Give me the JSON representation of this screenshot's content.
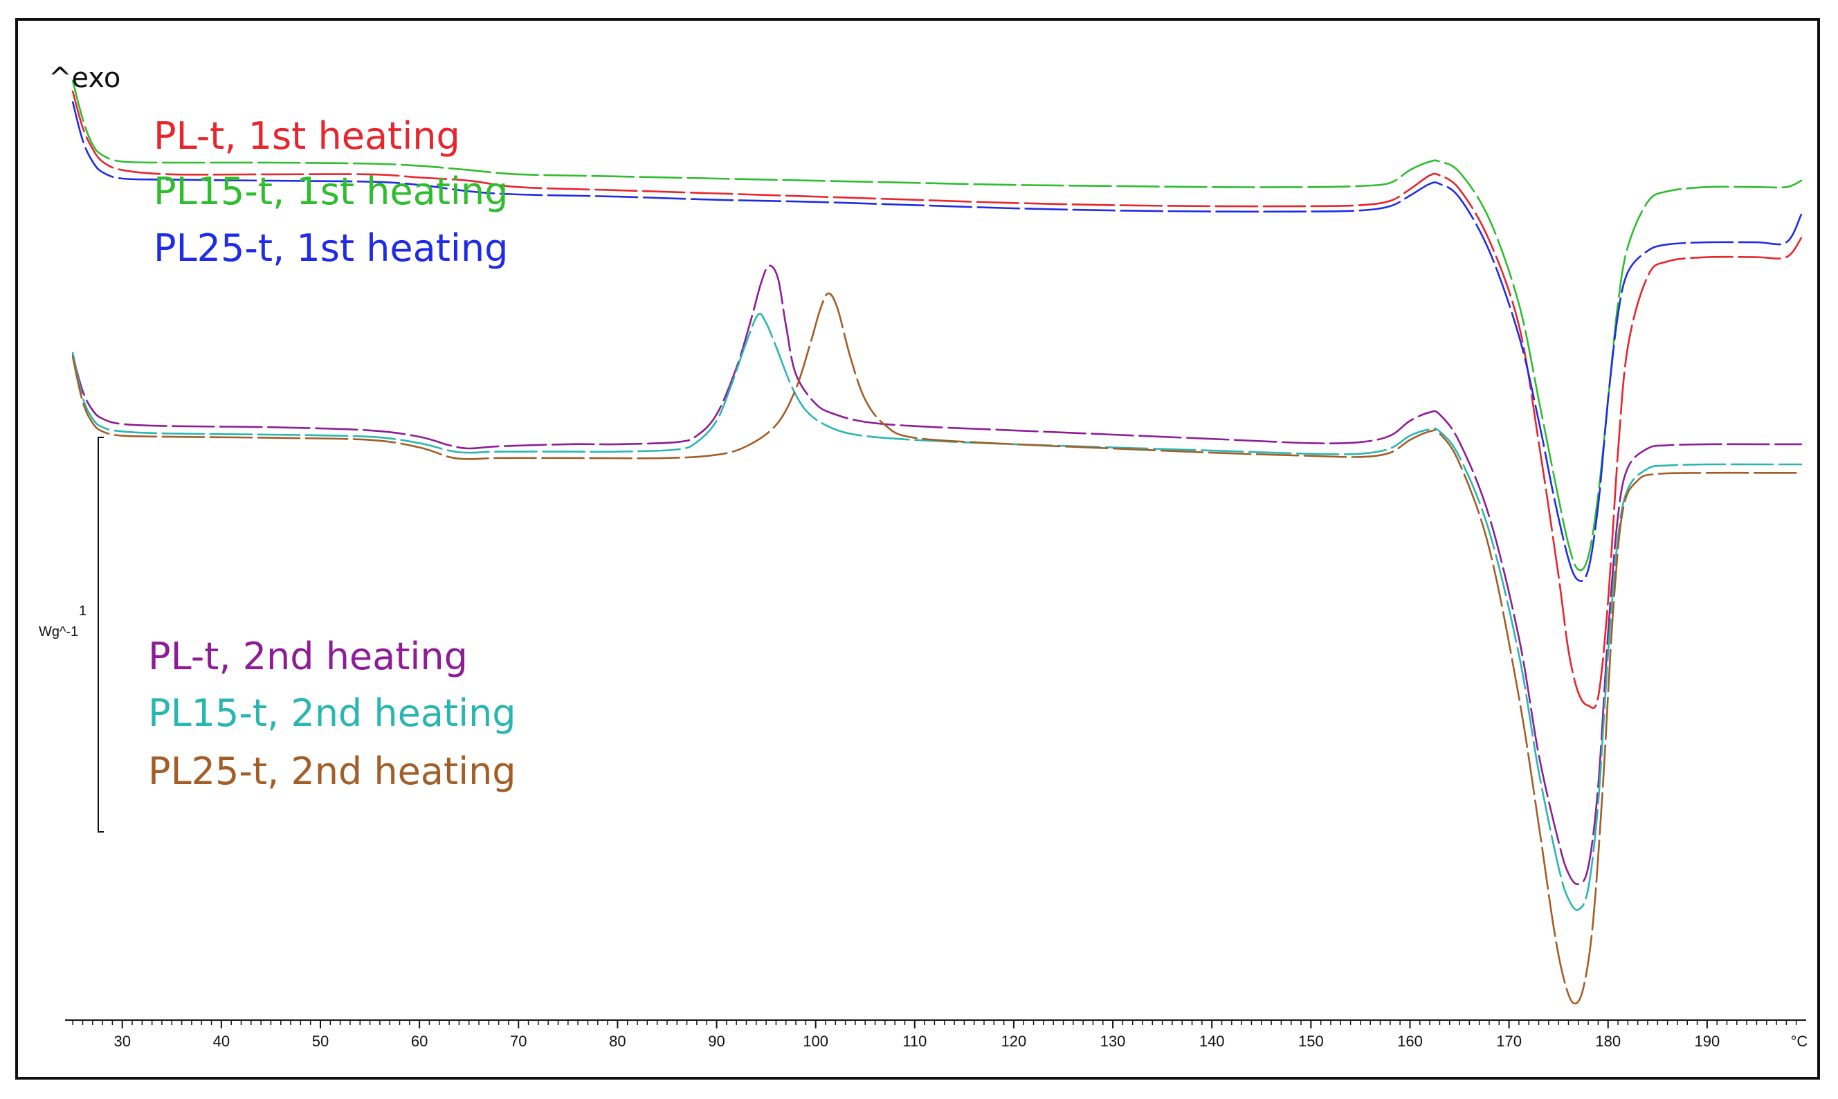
{
  "exo_label": "^exo",
  "scale_bar": {
    "value": "1",
    "unit": "Wg^-1"
  },
  "chart_data": {
    "type": "line",
    "title": "",
    "xlabel": "°C",
    "ylabel": "Wg^-1",
    "xlim": [
      24.5,
      200
    ],
    "ylim": [
      -3.02,
      1.65
    ],
    "x_ticks": [
      30,
      40,
      50,
      60,
      70,
      80,
      90,
      100,
      110,
      120,
      130,
      140,
      150,
      160,
      170,
      180,
      190
    ],
    "x_unit_label": "°C",
    "series": [
      {
        "name": "PL-t, 1st heating",
        "color": "#e8242c",
        "dashed": true,
        "points": [
          [
            25,
            1.35
          ],
          [
            26,
            1.18
          ],
          [
            27,
            1.08
          ],
          [
            28,
            1.02
          ],
          [
            30,
            0.98
          ],
          [
            35,
            0.96
          ],
          [
            45,
            0.96
          ],
          [
            55,
            0.96
          ],
          [
            60,
            0.945
          ],
          [
            65,
            0.93
          ],
          [
            70,
            0.9
          ],
          [
            80,
            0.885
          ],
          [
            90,
            0.87
          ],
          [
            100,
            0.855
          ],
          [
            110,
            0.84
          ],
          [
            120,
            0.825
          ],
          [
            130,
            0.815
          ],
          [
            140,
            0.81
          ],
          [
            150,
            0.81
          ],
          [
            155,
            0.815
          ],
          [
            158,
            0.835
          ],
          [
            160,
            0.89
          ],
          [
            162,
            0.955
          ],
          [
            163,
            0.955
          ],
          [
            165,
            0.89
          ],
          [
            168,
            0.65
          ],
          [
            171,
            0.25
          ],
          [
            173,
            -0.3
          ],
          [
            175,
            -0.93
          ],
          [
            176,
            -1.28
          ],
          [
            177,
            -1.48
          ],
          [
            178,
            -1.54
          ],
          [
            179,
            -1.5
          ],
          [
            180,
            -1.05
          ],
          [
            181,
            -0.35
          ],
          [
            182,
            0.15
          ],
          [
            184,
            0.48
          ],
          [
            186,
            0.55
          ],
          [
            190,
            0.57
          ],
          [
            195,
            0.57
          ],
          [
            198,
            0.57
          ],
          [
            199.5,
            0.66
          ]
        ]
      },
      {
        "name": "PL15-t, 1st heating",
        "color": "#2dbd2d",
        "dashed": true,
        "points": [
          [
            25,
            1.4
          ],
          [
            26,
            1.22
          ],
          [
            27,
            1.1
          ],
          [
            28,
            1.05
          ],
          [
            30,
            1.02
          ],
          [
            35,
            1.015
          ],
          [
            45,
            1.015
          ],
          [
            55,
            1.01
          ],
          [
            60,
            1.0
          ],
          [
            65,
            0.98
          ],
          [
            70,
            0.96
          ],
          [
            80,
            0.95
          ],
          [
            90,
            0.94
          ],
          [
            100,
            0.93
          ],
          [
            110,
            0.92
          ],
          [
            120,
            0.91
          ],
          [
            130,
            0.905
          ],
          [
            140,
            0.9
          ],
          [
            150,
            0.9
          ],
          [
            155,
            0.905
          ],
          [
            158,
            0.92
          ],
          [
            160,
            0.98
          ],
          [
            162,
            1.02
          ],
          [
            163,
            1.02
          ],
          [
            165,
            0.97
          ],
          [
            168,
            0.75
          ],
          [
            171,
            0.35
          ],
          [
            173,
            -0.1
          ],
          [
            174.5,
            -0.45
          ],
          [
            176,
            -0.78
          ],
          [
            177,
            -0.9
          ],
          [
            178,
            -0.84
          ],
          [
            179,
            -0.55
          ],
          [
            180,
            -0.1
          ],
          [
            181,
            0.35
          ],
          [
            182,
            0.62
          ],
          [
            184,
            0.83
          ],
          [
            186,
            0.88
          ],
          [
            190,
            0.9
          ],
          [
            195,
            0.9
          ],
          [
            198,
            0.9
          ],
          [
            199.5,
            0.93
          ]
        ]
      },
      {
        "name": "PL25-t, 1st heating",
        "color": "#1f2be8",
        "dashed": true,
        "points": [
          [
            25,
            1.3
          ],
          [
            26,
            1.12
          ],
          [
            27,
            1.02
          ],
          [
            28,
            0.97
          ],
          [
            30,
            0.94
          ],
          [
            35,
            0.935
          ],
          [
            45,
            0.93
          ],
          [
            55,
            0.925
          ],
          [
            60,
            0.91
          ],
          [
            65,
            0.88
          ],
          [
            70,
            0.865
          ],
          [
            80,
            0.855
          ],
          [
            90,
            0.84
          ],
          [
            100,
            0.83
          ],
          [
            110,
            0.815
          ],
          [
            120,
            0.8
          ],
          [
            130,
            0.79
          ],
          [
            140,
            0.785
          ],
          [
            150,
            0.785
          ],
          [
            155,
            0.79
          ],
          [
            158,
            0.81
          ],
          [
            160,
            0.86
          ],
          [
            162,
            0.915
          ],
          [
            163,
            0.915
          ],
          [
            165,
            0.85
          ],
          [
            168,
            0.6
          ],
          [
            171,
            0.2
          ],
          [
            173,
            -0.2
          ],
          [
            174.5,
            -0.55
          ],
          [
            176,
            -0.85
          ],
          [
            177,
            -0.95
          ],
          [
            178,
            -0.9
          ],
          [
            179,
            -0.6
          ],
          [
            180,
            -0.1
          ],
          [
            181,
            0.3
          ],
          [
            182,
            0.5
          ],
          [
            184,
            0.6
          ],
          [
            186,
            0.63
          ],
          [
            190,
            0.64
          ],
          [
            195,
            0.64
          ],
          [
            198,
            0.64
          ],
          [
            199.5,
            0.77
          ]
        ]
      },
      {
        "name": "PL-t, 2nd heating",
        "color": "#8e1c96",
        "dashed": true,
        "points": [
          [
            25,
            0.11
          ],
          [
            26,
            -0.06
          ],
          [
            27,
            -0.15
          ],
          [
            28,
            -0.19
          ],
          [
            30,
            -0.215
          ],
          [
            35,
            -0.225
          ],
          [
            45,
            -0.23
          ],
          [
            55,
            -0.245
          ],
          [
            60,
            -0.275
          ],
          [
            63,
            -0.315
          ],
          [
            65,
            -0.33
          ],
          [
            68,
            -0.32
          ],
          [
            75,
            -0.31
          ],
          [
            80,
            -0.31
          ],
          [
            86,
            -0.3
          ],
          [
            88,
            -0.27
          ],
          [
            90,
            -0.17
          ],
          [
            92,
            0.05
          ],
          [
            93.5,
            0.28
          ],
          [
            94.5,
            0.45
          ],
          [
            95.3,
            0.53
          ],
          [
            96.2,
            0.47
          ],
          [
            97,
            0.25
          ],
          [
            98,
            0.02
          ],
          [
            100,
            -0.12
          ],
          [
            102,
            -0.17
          ],
          [
            105,
            -0.205
          ],
          [
            110,
            -0.225
          ],
          [
            120,
            -0.245
          ],
          [
            130,
            -0.265
          ],
          [
            140,
            -0.285
          ],
          [
            150,
            -0.305
          ],
          [
            155,
            -0.3
          ],
          [
            158,
            -0.27
          ],
          [
            160,
            -0.2
          ],
          [
            162,
            -0.16
          ],
          [
            163,
            -0.17
          ],
          [
            165,
            -0.3
          ],
          [
            168,
            -0.65
          ],
          [
            171,
            -1.22
          ],
          [
            173,
            -1.77
          ],
          [
            175,
            -2.18
          ],
          [
            176,
            -2.33
          ],
          [
            177,
            -2.38
          ],
          [
            178,
            -2.3
          ],
          [
            179,
            -1.92
          ],
          [
            180,
            -1.2
          ],
          [
            181,
            -0.65
          ],
          [
            182,
            -0.42
          ],
          [
            184,
            -0.33
          ],
          [
            186,
            -0.315
          ],
          [
            190,
            -0.31
          ],
          [
            195,
            -0.31
          ],
          [
            199.5,
            -0.31
          ]
        ]
      },
      {
        "name": "PL15-t, 2nd heating",
        "color": "#2ab6b0",
        "dashed": true,
        "points": [
          [
            25,
            0.12
          ],
          [
            26,
            -0.09
          ],
          [
            27,
            -0.19
          ],
          [
            28,
            -0.23
          ],
          [
            30,
            -0.25
          ],
          [
            35,
            -0.26
          ],
          [
            45,
            -0.265
          ],
          [
            55,
            -0.275
          ],
          [
            60,
            -0.305
          ],
          [
            63,
            -0.34
          ],
          [
            65,
            -0.35
          ],
          [
            68,
            -0.345
          ],
          [
            75,
            -0.345
          ],
          [
            80,
            -0.345
          ],
          [
            86,
            -0.335
          ],
          [
            88,
            -0.3
          ],
          [
            90,
            -0.2
          ],
          [
            91.5,
            -0.03
          ],
          [
            93,
            0.17
          ],
          [
            94.2,
            0.3
          ],
          [
            95,
            0.26
          ],
          [
            96,
            0.15
          ],
          [
            97.5,
            -0.03
          ],
          [
            99,
            -0.15
          ],
          [
            101,
            -0.22
          ],
          [
            104,
            -0.265
          ],
          [
            110,
            -0.29
          ],
          [
            120,
            -0.31
          ],
          [
            130,
            -0.325
          ],
          [
            140,
            -0.34
          ],
          [
            150,
            -0.355
          ],
          [
            155,
            -0.355
          ],
          [
            158,
            -0.33
          ],
          [
            160,
            -0.27
          ],
          [
            162,
            -0.24
          ],
          [
            163,
            -0.25
          ],
          [
            165,
            -0.37
          ],
          [
            168,
            -0.72
          ],
          [
            171,
            -1.3
          ],
          [
            173,
            -1.85
          ],
          [
            175,
            -2.3
          ],
          [
            176,
            -2.45
          ],
          [
            177,
            -2.5
          ],
          [
            178,
            -2.4
          ],
          [
            179,
            -2.0
          ],
          [
            180,
            -1.3
          ],
          [
            181,
            -0.75
          ],
          [
            182,
            -0.52
          ],
          [
            184,
            -0.425
          ],
          [
            186,
            -0.41
          ],
          [
            190,
            -0.405
          ],
          [
            195,
            -0.405
          ],
          [
            199.5,
            -0.405
          ]
        ]
      },
      {
        "name": "PL25-t, 2nd heating",
        "color": "#a35d26",
        "dashed": true,
        "points": [
          [
            25,
            0.1
          ],
          [
            26,
            -0.11
          ],
          [
            27,
            -0.21
          ],
          [
            28,
            -0.25
          ],
          [
            30,
            -0.27
          ],
          [
            35,
            -0.275
          ],
          [
            45,
            -0.28
          ],
          [
            55,
            -0.29
          ],
          [
            60,
            -0.325
          ],
          [
            63,
            -0.37
          ],
          [
            65,
            -0.38
          ],
          [
            68,
            -0.375
          ],
          [
            75,
            -0.375
          ],
          [
            85,
            -0.375
          ],
          [
            90,
            -0.36
          ],
          [
            93,
            -0.32
          ],
          [
            96,
            -0.22
          ],
          [
            98,
            -0.05
          ],
          [
            99.5,
            0.17
          ],
          [
            100.5,
            0.33
          ],
          [
            101.3,
            0.4
          ],
          [
            102.2,
            0.33
          ],
          [
            103.5,
            0.1
          ],
          [
            105,
            -0.1
          ],
          [
            107,
            -0.22
          ],
          [
            110,
            -0.28
          ],
          [
            120,
            -0.31
          ],
          [
            130,
            -0.33
          ],
          [
            140,
            -0.35
          ],
          [
            150,
            -0.365
          ],
          [
            155,
            -0.37
          ],
          [
            158,
            -0.35
          ],
          [
            160,
            -0.29
          ],
          [
            162,
            -0.25
          ],
          [
            163,
            -0.26
          ],
          [
            165,
            -0.4
          ],
          [
            168,
            -0.8
          ],
          [
            171,
            -1.5
          ],
          [
            173,
            -2.1
          ],
          [
            174.5,
            -2.58
          ],
          [
            175.5,
            -2.82
          ],
          [
            176.5,
            -2.94
          ],
          [
            177.5,
            -2.87
          ],
          [
            178.5,
            -2.55
          ],
          [
            179.5,
            -1.9
          ],
          [
            180.5,
            -1.1
          ],
          [
            181.5,
            -0.62
          ],
          [
            183,
            -0.48
          ],
          [
            185,
            -0.45
          ],
          [
            190,
            -0.445
          ],
          [
            195,
            -0.445
          ],
          [
            199.5,
            -0.445
          ]
        ]
      }
    ]
  }
}
